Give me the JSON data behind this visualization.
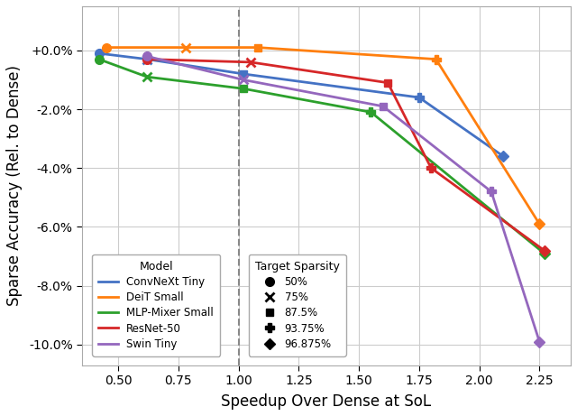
{
  "models_data": {
    "ConvNeXt Tiny": {
      "color": "#4472C4",
      "points": [
        [
          0.42,
          -0.001
        ],
        [
          0.62,
          -0.003
        ],
        [
          1.02,
          -0.008
        ],
        [
          1.75,
          -0.016
        ],
        [
          2.1,
          -0.036
        ]
      ],
      "sparsity_indices": [
        0,
        1,
        2,
        3,
        4
      ]
    },
    "DeiT Small": {
      "color": "#FF7F0E",
      "points": [
        [
          0.45,
          0.001
        ],
        [
          0.78,
          0.001
        ],
        [
          1.08,
          0.001
        ],
        [
          1.82,
          -0.003
        ],
        [
          2.25,
          -0.059
        ]
      ],
      "sparsity_indices": [
        0,
        1,
        2,
        3,
        4
      ]
    },
    "MLP-Mixer Small": {
      "color": "#2CA02C",
      "points": [
        [
          0.42,
          -0.003
        ],
        [
          0.62,
          -0.009
        ],
        [
          1.02,
          -0.013
        ],
        [
          1.55,
          -0.021
        ],
        [
          2.27,
          -0.069
        ]
      ],
      "sparsity_indices": [
        0,
        1,
        2,
        3,
        4
      ]
    },
    "ResNet-50": {
      "color": "#D62728",
      "points": [
        [
          0.62,
          -0.003
        ],
        [
          1.05,
          -0.004
        ],
        [
          1.62,
          -0.011
        ],
        [
          1.8,
          -0.04
        ],
        [
          2.27,
          -0.068
        ]
      ],
      "sparsity_indices": [
        0,
        1,
        2,
        3,
        4
      ]
    },
    "Swin Tiny": {
      "color": "#9467BD",
      "points": [
        [
          0.62,
          -0.002
        ],
        [
          1.02,
          -0.01
        ],
        [
          1.6,
          -0.019
        ],
        [
          2.05,
          -0.048
        ],
        [
          2.25,
          -0.099
        ]
      ],
      "sparsity_indices": [
        0,
        1,
        2,
        3,
        4
      ]
    }
  },
  "sparsity_labels": [
    "50%",
    "75%",
    "87.5%",
    "93.75%",
    "96.875%"
  ],
  "sparsity_markers": [
    "o",
    "x",
    "s",
    "P",
    "D"
  ],
  "sparsity_marker_sizes": [
    7,
    7,
    6,
    7,
    6
  ],
  "dashed_line_x": 1.0,
  "xlabel": "Speedup Over Dense at SoL",
  "ylabel": "Sparse Accuracy (Rel. to Dense)",
  "xlim": [
    0.35,
    2.38
  ],
  "ylim": [
    -0.107,
    0.015
  ],
  "yticks": [
    0.0,
    -0.02,
    -0.04,
    -0.06,
    -0.08,
    -0.1
  ],
  "ytick_labels": [
    "+0.0%",
    "-2.0%",
    "-4.0%",
    "-6.0%",
    "-8.0%",
    "-10.0%"
  ],
  "xticks": [
    0.5,
    0.75,
    1.0,
    1.25,
    1.5,
    1.75,
    2.0,
    2.25
  ],
  "fig_bg_color": "#ffffff",
  "ax_bg_color": "#ffffff",
  "grid_color": "#cccccc",
  "legend_title_model": "Model",
  "legend_title_sparsity": "Target Sparsity"
}
